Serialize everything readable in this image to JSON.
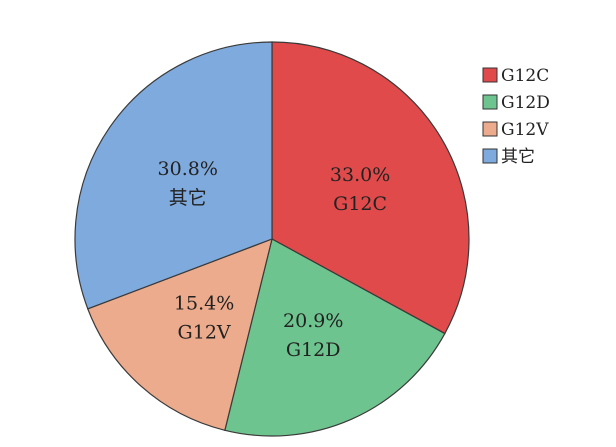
{
  "chart_data": {
    "type": "pie",
    "title": "",
    "slices": [
      {
        "name": "G12C",
        "value": 33.0,
        "pct_label": "33.0%",
        "color": "#e04a4b"
      },
      {
        "name": "G12D",
        "value": 20.9,
        "pct_label": "20.9%",
        "color": "#6ec48e"
      },
      {
        "name": "G12V",
        "value": 15.4,
        "pct_label": "15.4%",
        "color": "#ecab8c"
      },
      {
        "name": "其它",
        "value": 30.8,
        "pct_label": "30.8%",
        "color": "#7faadd"
      }
    ],
    "start_angle_deg": 0,
    "direction": "clockwise",
    "legend_position": "top-right"
  }
}
